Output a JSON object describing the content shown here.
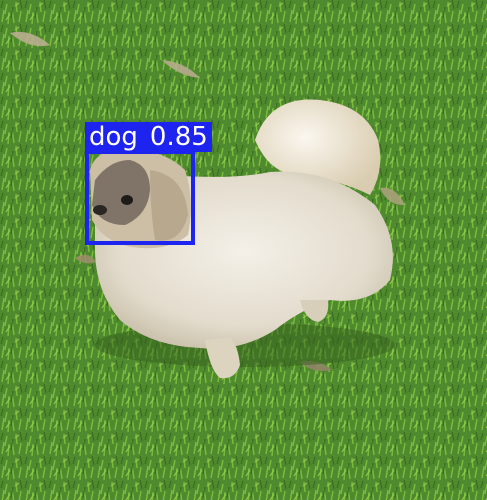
{
  "detections": [
    {
      "label": "dog",
      "score": "0.85",
      "color": "#1e24f0"
    }
  ],
  "scene": {
    "subject": "dog-icon",
    "grass_color": "#4f8a2e",
    "fur_color": "#e6e0d3"
  }
}
